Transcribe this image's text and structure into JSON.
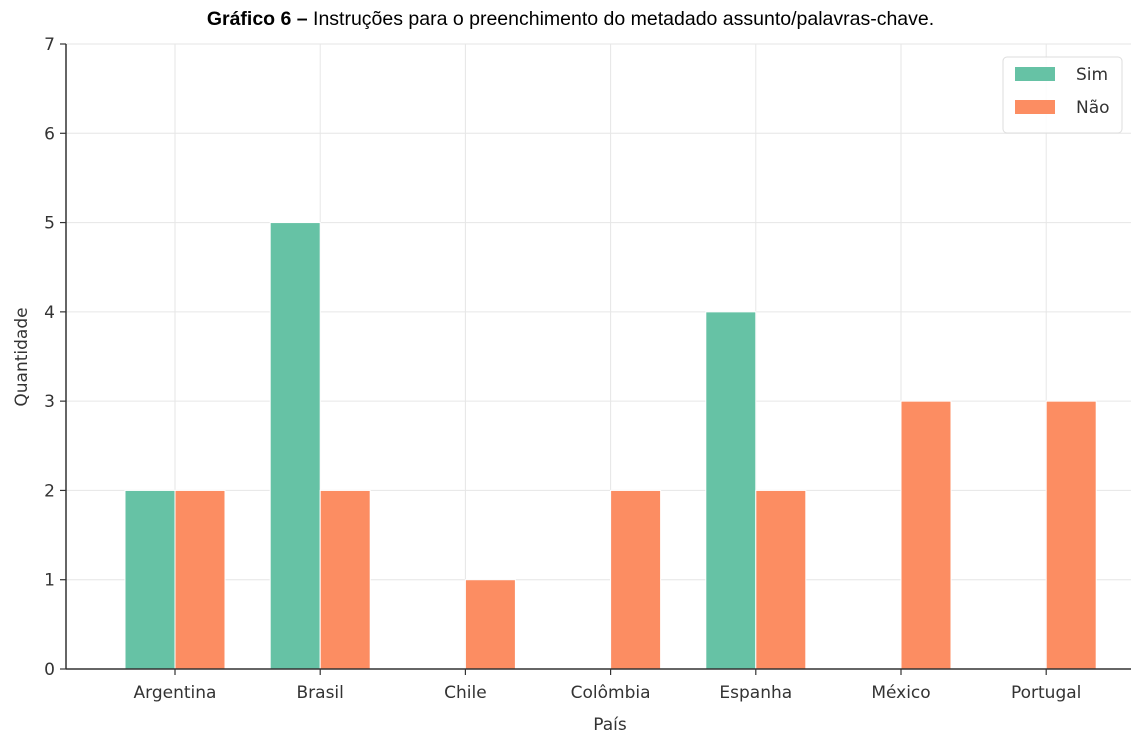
{
  "chart_data": {
    "type": "bar",
    "title_bold": "Gráfico 6 –",
    "title_rest": " Instruções para o preenchimento do metadado assunto/palavras-chave.",
    "xlabel": "País",
    "ylabel": "Quantidade",
    "categories": [
      "Argentina",
      "Brasil",
      "Chile",
      "Colômbia",
      "Espanha",
      "México",
      "Portugal"
    ],
    "series": [
      {
        "name": "Sim",
        "color": "#66c2a5",
        "values": [
          2,
          5,
          0,
          0,
          4,
          0,
          0
        ]
      },
      {
        "name": "Não",
        "color": "#fc8d62",
        "values": [
          2,
          2,
          1,
          2,
          2,
          3,
          3
        ]
      }
    ],
    "ylim": [
      0,
      7
    ],
    "yticks": [
      0,
      1,
      2,
      3,
      4,
      5,
      6,
      7
    ],
    "grid": true,
    "legend_position": "top-right"
  }
}
